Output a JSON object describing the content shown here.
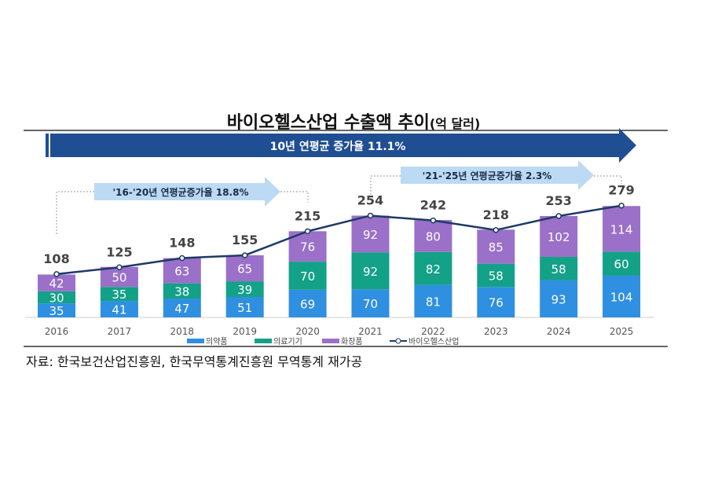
{
  "chart_data": {
    "type": "bar",
    "stacked": true,
    "title": "바이오헬스산업 수출액 추이",
    "unit": "(억 달러)",
    "categories": [
      "2016",
      "2017",
      "2018",
      "2019",
      "2020",
      "2021",
      "2022",
      "2023",
      "2024",
      "2025"
    ],
    "series": [
      {
        "name": "의약품",
        "color": "#2f8fe0",
        "values": [
          35,
          41,
          47,
          51,
          69,
          70,
          81,
          76,
          93,
          104
        ]
      },
      {
        "name": "의료기기",
        "color": "#13a188",
        "values": [
          30,
          35,
          38,
          39,
          70,
          92,
          82,
          58,
          58,
          60
        ]
      },
      {
        "name": "화장품",
        "color": "#9a70c9",
        "values": [
          42,
          50,
          63,
          65,
          76,
          92,
          80,
          85,
          102,
          114
        ]
      }
    ],
    "line": {
      "name": "바이오헬스산업",
      "color": "#1e3a66",
      "values": [
        108,
        125,
        148,
        155,
        215,
        254,
        242,
        218,
        253,
        279
      ]
    },
    "annotations": {
      "overall": "10년 연평균 증가율 11.1%",
      "period1": "'16-'20년 연평균증가율 18.8%",
      "period2": "'21-'25년 연평균증가율 2.3%"
    },
    "legend_position": "bottom",
    "grid": false
  },
  "source": "자료: 한국보건산업진흥원, 한국무역통계진흥원 무역통계 재가공"
}
